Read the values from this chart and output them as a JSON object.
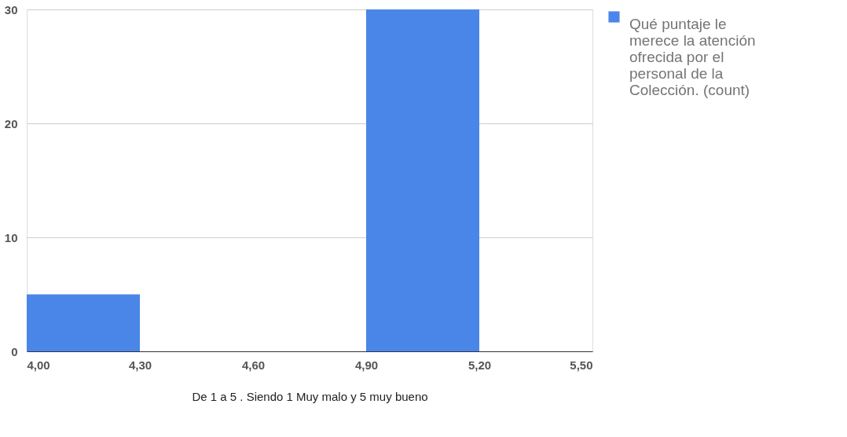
{
  "chart_data": {
    "type": "histogram",
    "xlabel": "De 1 a 5 . Siendo 1 Muy malo y 5 muy bueno",
    "bins": [
      4.0,
      4.3,
      4.6,
      4.9,
      5.2,
      5.5
    ],
    "series": [
      {
        "name": "Qué puntaje le merece la atención ofrecida por el personal de la Colección. (count)",
        "color": "#4a86e8",
        "values": [
          5,
          0,
          0,
          30,
          0
        ]
      }
    ],
    "xlim": [
      4.0,
      5.5
    ],
    "xticks": [
      {
        "value": 4.0,
        "label": "4,00"
      },
      {
        "value": 4.3,
        "label": "4,30"
      },
      {
        "value": 4.6,
        "label": "4,60"
      },
      {
        "value": 4.9,
        "label": "4,90"
      },
      {
        "value": 5.2,
        "label": "5,20"
      },
      {
        "value": 5.5,
        "label": "5,50"
      }
    ],
    "ylim": [
      0,
      30
    ],
    "yticks": [
      0,
      10,
      20,
      30
    ],
    "grid": "y",
    "legend": "top right"
  }
}
